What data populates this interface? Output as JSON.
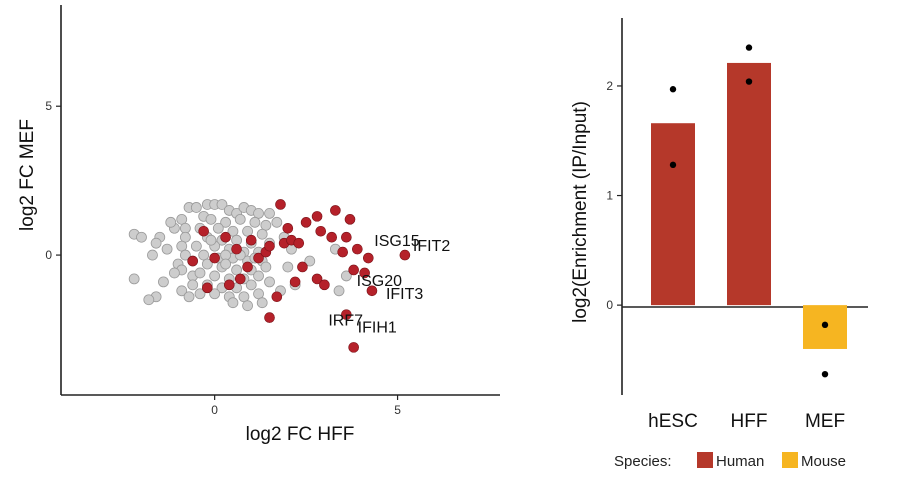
{
  "colors": {
    "human": "#b5382a",
    "mouse": "#f6b521",
    "background_point": "#cdcdcd",
    "background_point_stroke": "#9a9a9a",
    "highlight_point": "#b5212a"
  },
  "chart_data": [
    {
      "type": "scatter",
      "title": "",
      "xlabel": "log2 FC HFF",
      "ylabel": "log2 FC MEF",
      "xlim": [
        -4.2,
        7.8
      ],
      "ylim": [
        -4.7,
        8.4
      ],
      "x_ticks": [
        0,
        5
      ],
      "y_ticks": [
        0,
        5
      ],
      "grid": false,
      "series": [
        {
          "name": "other genes",
          "color": "#cdcdcd",
          "points": [
            [
              -2.2,
              0.7
            ],
            [
              -2.0,
              0.6
            ],
            [
              -1.5,
              0.6
            ],
            [
              -1.6,
              0.4
            ],
            [
              -1.3,
              0.2
            ],
            [
              -1.7,
              0.0
            ],
            [
              -2.2,
              -0.8
            ],
            [
              -1.1,
              0.9
            ],
            [
              -0.9,
              1.2
            ],
            [
              -0.8,
              0.9
            ],
            [
              -0.8,
              0.6
            ],
            [
              -0.9,
              0.3
            ],
            [
              -0.8,
              0.0
            ],
            [
              -1.0,
              -0.3
            ],
            [
              -0.9,
              -0.5
            ],
            [
              -0.6,
              -0.7
            ],
            [
              -1.1,
              -0.6
            ],
            [
              -1.6,
              -1.4
            ],
            [
              -1.8,
              -1.5
            ],
            [
              -0.9,
              -1.2
            ],
            [
              -0.6,
              -1.0
            ],
            [
              -0.7,
              1.6
            ],
            [
              -0.5,
              1.6
            ],
            [
              -0.2,
              1.7
            ],
            [
              0.0,
              1.7
            ],
            [
              0.2,
              1.7
            ],
            [
              0.4,
              1.5
            ],
            [
              0.6,
              1.4
            ],
            [
              0.8,
              1.6
            ],
            [
              1.0,
              1.5
            ],
            [
              1.2,
              1.4
            ],
            [
              1.5,
              1.4
            ],
            [
              -0.3,
              1.3
            ],
            [
              -0.1,
              1.2
            ],
            [
              0.3,
              1.1
            ],
            [
              0.7,
              1.2
            ],
            [
              1.1,
              1.1
            ],
            [
              1.4,
              1.0
            ],
            [
              -0.4,
              0.9
            ],
            [
              0.1,
              0.9
            ],
            [
              0.5,
              0.8
            ],
            [
              0.9,
              0.8
            ],
            [
              1.3,
              0.7
            ],
            [
              -0.2,
              0.6
            ],
            [
              0.2,
              0.5
            ],
            [
              0.6,
              0.5
            ],
            [
              1.0,
              0.4
            ],
            [
              1.5,
              0.4
            ],
            [
              -0.5,
              0.3
            ],
            [
              0.0,
              0.3
            ],
            [
              0.4,
              0.2
            ],
            [
              0.8,
              0.1
            ],
            [
              1.2,
              0.1
            ],
            [
              -0.3,
              0.0
            ],
            [
              0.1,
              -0.1
            ],
            [
              0.5,
              -0.1
            ],
            [
              0.9,
              -0.2
            ],
            [
              1.3,
              -0.2
            ],
            [
              -0.6,
              -0.2
            ],
            [
              -0.2,
              -0.3
            ],
            [
              0.2,
              -0.4
            ],
            [
              0.6,
              -0.5
            ],
            [
              1.0,
              -0.5
            ],
            [
              1.4,
              -0.4
            ],
            [
              -0.4,
              -0.6
            ],
            [
              0.0,
              -0.7
            ],
            [
              0.4,
              -0.8
            ],
            [
              0.8,
              -0.8
            ],
            [
              1.2,
              -0.7
            ],
            [
              -0.2,
              -1.0
            ],
            [
              0.2,
              -1.1
            ],
            [
              0.6,
              -1.1
            ],
            [
              1.0,
              -1.0
            ],
            [
              1.5,
              -0.9
            ],
            [
              -0.4,
              -1.3
            ],
            [
              0.0,
              -1.3
            ],
            [
              0.4,
              -1.4
            ],
            [
              0.8,
              -1.4
            ],
            [
              1.2,
              -1.3
            ],
            [
              0.5,
              -1.6
            ],
            [
              0.9,
              -1.7
            ],
            [
              1.3,
              -1.6
            ],
            [
              2.0,
              -0.4
            ],
            [
              2.2,
              -1.0
            ],
            [
              1.8,
              -1.2
            ],
            [
              2.6,
              -0.2
            ],
            [
              3.4,
              -1.2
            ],
            [
              3.6,
              -0.7
            ],
            [
              3.3,
              0.2
            ],
            [
              1.7,
              1.1
            ],
            [
              1.9,
              0.6
            ],
            [
              2.1,
              0.2
            ],
            [
              -1.2,
              1.1
            ],
            [
              -1.4,
              -0.9
            ],
            [
              -0.7,
              -1.4
            ],
            [
              0.3,
              0.0
            ],
            [
              0.7,
              0.0
            ],
            [
              1.1,
              -0.1
            ],
            [
              -0.1,
              0.5
            ],
            [
              0.3,
              -0.3
            ]
          ]
        },
        {
          "name": "highlighted genes",
          "color": "#b5212a",
          "points": [
            [
              -0.3,
              0.8
            ],
            [
              0.0,
              -0.1
            ],
            [
              0.3,
              0.6
            ],
            [
              0.6,
              0.2
            ],
            [
              0.9,
              -0.4
            ],
            [
              1.0,
              0.5
            ],
            [
              1.2,
              -0.1
            ],
            [
              -0.2,
              -1.1
            ],
            [
              0.4,
              -1.0
            ],
            [
              0.7,
              -0.8
            ],
            [
              -0.6,
              -0.2
            ],
            [
              1.4,
              0.1
            ],
            [
              1.8,
              1.7
            ],
            [
              1.5,
              0.3
            ],
            [
              1.9,
              0.4
            ],
            [
              2.0,
              0.9
            ],
            [
              2.1,
              0.5
            ],
            [
              2.3,
              0.4
            ],
            [
              2.5,
              1.1
            ],
            [
              2.8,
              1.3
            ],
            [
              2.9,
              0.8
            ],
            [
              3.2,
              0.6
            ],
            [
              3.5,
              0.1
            ],
            [
              3.6,
              0.6
            ],
            [
              3.7,
              1.2
            ],
            [
              3.3,
              1.5
            ],
            [
              2.4,
              -0.4
            ],
            [
              2.8,
              -0.8
            ],
            [
              3.0,
              -1.0
            ],
            [
              3.9,
              0.2
            ],
            [
              3.8,
              -0.5
            ],
            [
              1.7,
              -1.4
            ],
            [
              2.2,
              -0.9
            ],
            [
              1.5,
              -2.1
            ]
          ]
        },
        {
          "name": "labeled genes",
          "color": "#b5212a",
          "points": [
            {
              "x": 4.2,
              "y": -0.1,
              "label": "ISG15"
            },
            {
              "x": 5.2,
              "y": 0.0,
              "label": "IFIT2"
            },
            {
              "x": 4.1,
              "y": -0.6,
              "label": "ISG20"
            },
            {
              "x": 4.3,
              "y": -1.2,
              "label": "IFIT3"
            },
            {
              "x": 3.6,
              "y": -2.0,
              "label": "IRF7"
            },
            {
              "x": 3.8,
              "y": -3.1,
              "label": "IFIH1"
            }
          ]
        }
      ]
    },
    {
      "type": "bar",
      "title": "",
      "xlabel": "",
      "ylabel": "log2(Enrichment (IP/Input)",
      "categories": [
        "hESC",
        "HFF",
        "MEF"
      ],
      "values": [
        1.66,
        2.21,
        -0.4
      ],
      "species": [
        "Human",
        "Human",
        "Mouse"
      ],
      "replicates": [
        [
          1.97,
          1.28
        ],
        [
          2.35,
          2.04
        ],
        [
          -0.18,
          -0.63
        ]
      ],
      "ylim": [
        -0.82,
        2.62
      ],
      "y_ticks": [
        0,
        1,
        2
      ],
      "grid": false,
      "legend": {
        "placement": "bottom",
        "title": "Species:",
        "entries": [
          {
            "label": "Human",
            "color": "#b5382a"
          },
          {
            "label": "Mouse",
            "color": "#f6b521"
          }
        ]
      }
    }
  ]
}
